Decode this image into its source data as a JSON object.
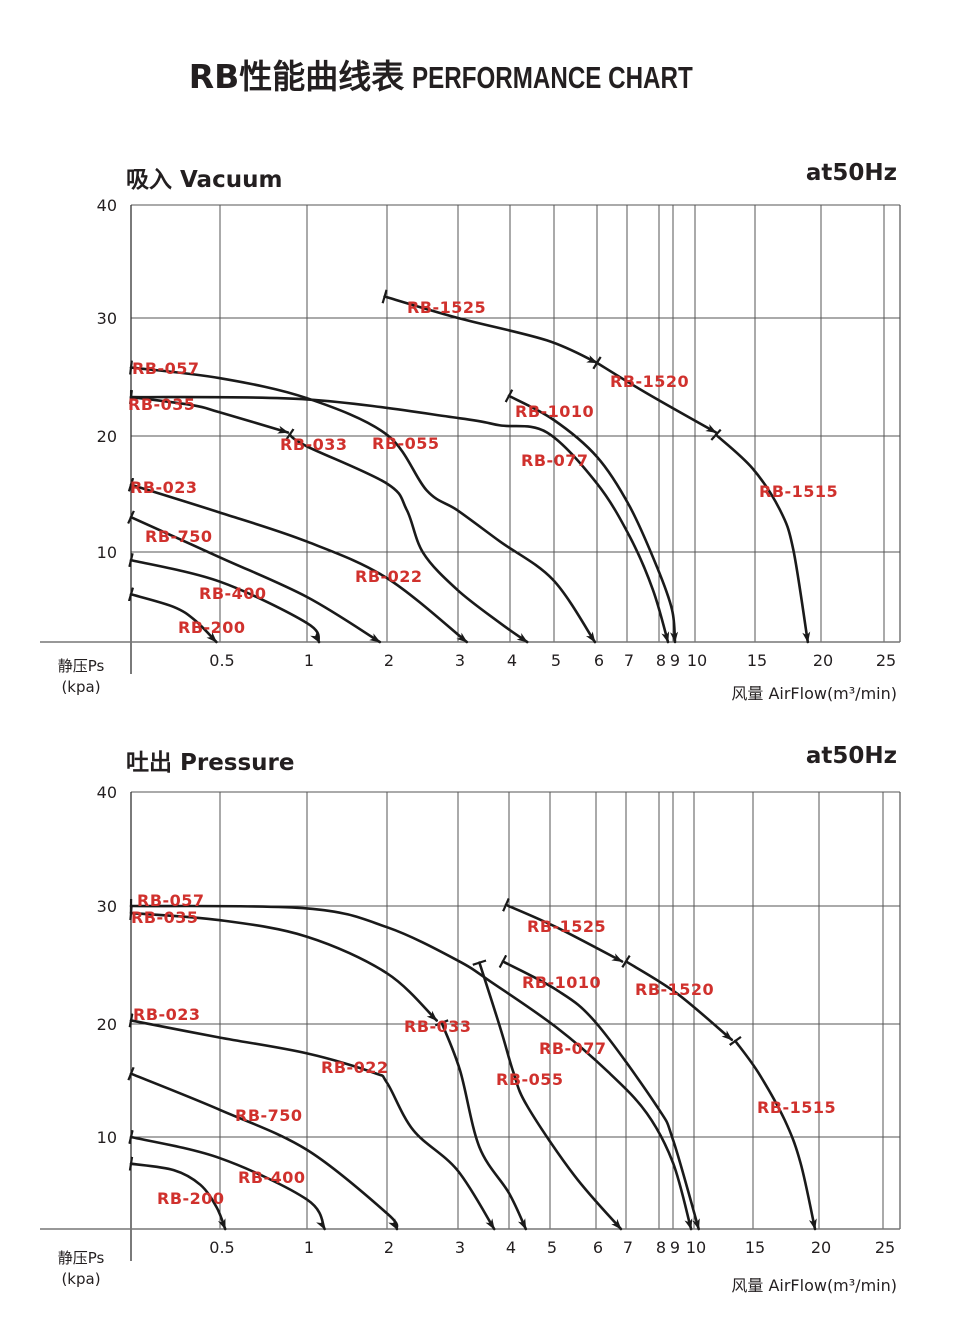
{
  "header": {
    "title_cn": "RB性能曲线表",
    "title_en": "PERFORMANCE CHART"
  },
  "colors": {
    "curve": "#1a1a1a",
    "label": "#d0312d",
    "grid": "#555555"
  },
  "chart_data": [
    {
      "type": "line",
      "title": "吸入 Vacuum",
      "frequency_note": "at50Hz",
      "ylabel": "静压Ps",
      "yunit": "(kpa)",
      "xlabel": "风量 AirFlow(m³/min)",
      "x_ticks": [
        0.5,
        1,
        2,
        3,
        4,
        5,
        6,
        7,
        8,
        9,
        10,
        15,
        20,
        25
      ],
      "x_tick_labels": [
        "0.5",
        "1",
        "2",
        "3",
        "4",
        "5",
        "6",
        "7",
        "8",
        "9",
        "10",
        "15",
        "20",
        "25"
      ],
      "x_scale": "non-uniform (compressed, log-like)",
      "y_ticks": [
        10,
        20,
        30,
        40
      ],
      "y_tick_labels": [
        "10",
        "20",
        "30",
        "40"
      ],
      "ylim": [
        0,
        40
      ],
      "grid": true,
      "curve_labels": [
        "RB-1525",
        "RB-057",
        "RB-035",
        "RB-1520",
        "RB-1010",
        "RB-033",
        "RB-055",
        "RB-077",
        "RB-1515",
        "RB-023",
        "RB-750",
        "RB-022",
        "RB-400",
        "RB-200"
      ],
      "series": [
        {
          "points": [
            [
              0,
              5.3
            ],
            [
              0.24,
              3.9
            ],
            [
              0.36,
              2.4
            ],
            [
              0.48,
              0
            ]
          ]
        },
        {
          "points": [
            [
              0,
              9.1
            ],
            [
              0.5,
              6.7
            ],
            [
              1,
              2.1
            ],
            [
              1.15,
              0
            ]
          ]
        },
        {
          "points": [
            [
              0,
              13
            ],
            [
              0.5,
              9.4
            ],
            [
              1,
              5
            ],
            [
              1.91,
              0
            ]
          ]
        },
        {
          "points": [
            [
              0,
              15.8
            ],
            [
              0.5,
              13.4
            ],
            [
              1,
              10.9
            ],
            [
              2,
              7.1
            ],
            [
              3.17,
              0
            ]
          ]
        },
        {
          "points": [
            [
              0,
              23.3
            ],
            [
              0.35,
              22.6
            ],
            [
              0.5,
              22
            ],
            [
              0.89,
              20.3
            ]
          ]
        },
        {
          "points": [
            [
              0.9,
              20.1
            ],
            [
              1,
              19.1
            ],
            [
              2,
              15.9
            ],
            [
              2.28,
              13.6
            ],
            [
              2.51,
              9.9
            ],
            [
              2.99,
              5.8
            ],
            [
              3.81,
              2.1
            ],
            [
              4.39,
              0
            ]
          ]
        },
        {
          "points": [
            [
              0,
              25.8
            ],
            [
              0.5,
              24.9
            ],
            [
              1,
              23.2
            ],
            [
              2,
              20.1
            ],
            [
              2.56,
              15.3
            ],
            [
              2.99,
              13.6
            ],
            [
              3.81,
              10.9
            ],
            [
              4.98,
              6.9
            ],
            [
              5.95,
              0
            ]
          ]
        },
        {
          "points": [
            [
              0,
              23.3
            ],
            [
              1,
              23.1
            ],
            [
              3.04,
              21.5
            ],
            [
              3.81,
              20.9
            ],
            [
              4.84,
              20.3
            ],
            [
              6,
              15.9
            ],
            [
              7.09,
              11.3
            ],
            [
              7.81,
              5.8
            ],
            [
              8.64,
              0
            ]
          ]
        },
        {
          "points": [
            [
              3.98,
              23.4
            ],
            [
              4.98,
              21.4
            ],
            [
              6,
              18.2
            ],
            [
              7.09,
              13.9
            ],
            [
              7.94,
              8.3
            ],
            [
              8.93,
              3.6
            ],
            [
              9.09,
              0
            ]
          ]
        },
        {
          "points": [
            [
              1.97,
              31.9
            ],
            [
              3,
              30
            ],
            [
              4.84,
              28.1
            ],
            [
              6,
              26.2
            ]
          ]
        },
        {
          "points": [
            [
              6,
              26.2
            ],
            [
              7.63,
              23.6
            ],
            [
              11.75,
              20.3
            ]
          ]
        },
        {
          "points": [
            [
              11.75,
              20.1
            ],
            [
              14.8,
              17.2
            ],
            [
              16.9,
              13.6
            ],
            [
              17.9,
              10.2
            ],
            [
              19.0,
              0
            ]
          ]
        }
      ]
    },
    {
      "type": "line",
      "title": "吐出 Pressure",
      "frequency_note": "at50Hz",
      "ylabel": "静压Ps",
      "yunit": "(kpa)",
      "xlabel": "风量 AirFlow(m³/min)",
      "x_ticks": [
        0.5,
        1,
        2,
        3,
        4,
        5,
        6,
        7,
        8,
        9,
        10,
        15,
        20,
        25
      ],
      "x_tick_labels": [
        "0.5",
        "1",
        "2",
        "3",
        "4",
        "5",
        "6",
        "7",
        "8",
        "9",
        "10",
        "15",
        "20",
        "25"
      ],
      "x_scale": "non-uniform (compressed, log-like)",
      "y_ticks": [
        10,
        20,
        30,
        40
      ],
      "y_tick_labels": [
        "10",
        "20",
        "30",
        "40"
      ],
      "ylim": [
        0,
        40
      ],
      "grid": true,
      "curve_labels": [
        "RB-057",
        "RB-035",
        "RB-023",
        "RB-1525",
        "RB-1010",
        "RB-1520",
        "RB-033",
        "RB-077",
        "RB-022",
        "RB-055",
        "RB-1515",
        "RB-750",
        "RB-400",
        "RB-200"
      ],
      "series": [
        {
          "points": [
            [
              0,
              7.1
            ],
            [
              0.24,
              6.4
            ],
            [
              0.39,
              4.8
            ],
            [
              0.48,
              2.4
            ],
            [
              0.53,
              0
            ]
          ]
        },
        {
          "points": [
            [
              0,
              10
            ],
            [
              0.5,
              7.7
            ],
            [
              1,
              3.2
            ],
            [
              1.22,
              0
            ]
          ]
        },
        {
          "points": [
            [
              0,
              15.6
            ],
            [
              0.5,
              12.4
            ],
            [
              1,
              8.6
            ],
            [
              2,
              1.7
            ],
            [
              2.14,
              0
            ]
          ]
        },
        {
          "points": [
            [
              0,
              20.3
            ],
            [
              0.5,
              18.8
            ],
            [
              1,
              17.4
            ],
            [
              1.83,
              15.7
            ],
            [
              2,
              14.8
            ],
            [
              2.37,
              10.6
            ],
            [
              2.99,
              6.4
            ],
            [
              3.71,
              0
            ]
          ]
        },
        {
          "points": [
            [
              0,
              29.4
            ],
            [
              0.5,
              28.8
            ],
            [
              1,
              27.4
            ],
            [
              2,
              24.3
            ],
            [
              2.7,
              20.3
            ]
          ]
        },
        {
          "points": [
            [
              2.77,
              20.1
            ],
            [
              3.04,
              15.9
            ],
            [
              3.42,
              8.9
            ],
            [
              4,
              3.9
            ],
            [
              4.41,
              0
            ]
          ]
        },
        {
          "points": [
            [
              0,
              30
            ],
            [
              1,
              29.8
            ],
            [
              2,
              28.2
            ],
            [
              2.99,
              25.4
            ],
            [
              3.67,
              23.5
            ],
            [
              5.14,
              19.7
            ],
            [
              6.43,
              15.7
            ],
            [
              7.63,
              12.1
            ],
            [
              9,
              7.2
            ],
            [
              9.86,
              0
            ]
          ]
        },
        {
          "points": [
            [
              3.42,
              25.2
            ],
            [
              3.84,
              19.5
            ],
            [
              4.11,
              15.7
            ],
            [
              4.45,
              12.7
            ],
            [
              5.53,
              5.8
            ],
            [
              6.83,
              0
            ]
          ]
        },
        {
          "points": [
            [
              3.88,
              25.3
            ],
            [
              5.14,
              22.9
            ],
            [
              6,
              20.1
            ],
            [
              7.94,
              12.7
            ],
            [
              9,
              9.7
            ],
            [
              10.4,
              0
            ]
          ]
        },
        {
          "points": [
            [
              3.94,
              30.1
            ],
            [
              5.14,
              28.2
            ],
            [
              6.87,
              25.3
            ]
          ]
        },
        {
          "points": [
            [
              7,
              25.3
            ],
            [
              9.18,
              22.6
            ],
            [
              13.2,
              18.6
            ]
          ]
        },
        {
          "points": [
            [
              13.5,
              18.5
            ],
            [
              15.4,
              15.7
            ],
            [
              17.4,
              11.5
            ],
            [
              18.6,
              7.2
            ],
            [
              19.7,
              0
            ]
          ]
        }
      ]
    }
  ]
}
